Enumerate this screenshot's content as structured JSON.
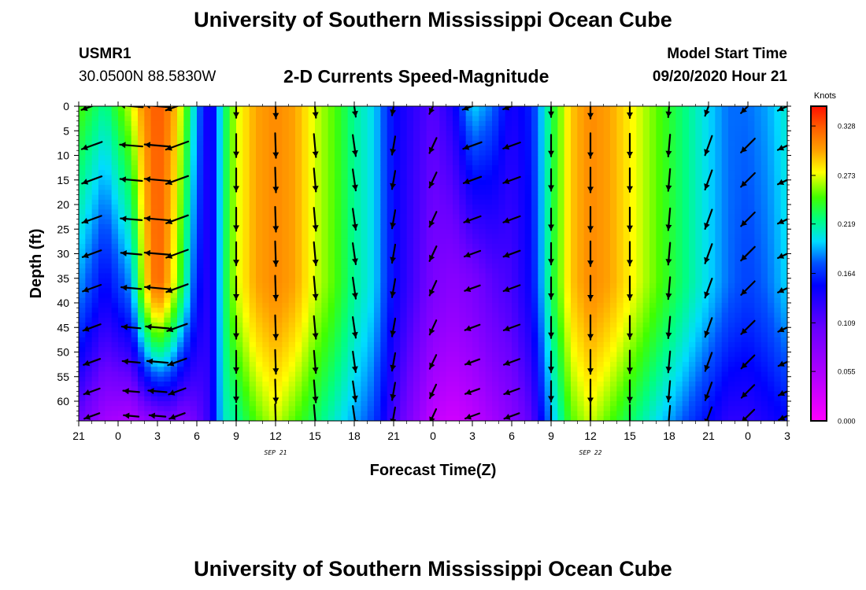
{
  "header": {
    "title": "University of Southern Mississippi Ocean Cube",
    "station_id": "USMR1",
    "station_coords": "30.0500N 88.5830W",
    "chart_title": "2-D Currents Speed-Magnitude",
    "model_start_label": "Model Start Time",
    "model_start_value": "09/20/2020 Hour 21"
  },
  "footer": {
    "title": "University of Southern Mississippi Ocean Cube"
  },
  "chart_data": {
    "type": "heatmap",
    "title": "2-D Currents Speed-Magnitude",
    "xlabel": "Forecast Time(Z)",
    "ylabel": "Depth (ft)",
    "x_start_hour": -3,
    "x_end_hour": 51,
    "x_ticks": [
      {
        "hour": -3,
        "label": "21"
      },
      {
        "hour": 0,
        "label": "0"
      },
      {
        "hour": 3,
        "label": "3"
      },
      {
        "hour": 6,
        "label": "6"
      },
      {
        "hour": 9,
        "label": "9"
      },
      {
        "hour": 12,
        "label": "12"
      },
      {
        "hour": 15,
        "label": "15"
      },
      {
        "hour": 18,
        "label": "18"
      },
      {
        "hour": 21,
        "label": "21"
      },
      {
        "hour": 24,
        "label": "0"
      },
      {
        "hour": 27,
        "label": "3"
      },
      {
        "hour": 30,
        "label": "6"
      },
      {
        "hour": 33,
        "label": "9"
      },
      {
        "hour": 36,
        "label": "12"
      },
      {
        "hour": 39,
        "label": "15"
      },
      {
        "hour": 42,
        "label": "18"
      },
      {
        "hour": 45,
        "label": "21"
      },
      {
        "hour": 48,
        "label": "0"
      },
      {
        "hour": 51,
        "label": "3"
      }
    ],
    "date_labels": [
      {
        "hour": 12,
        "label": "SEP 21"
      },
      {
        "hour": 36,
        "label": "SEP 22"
      }
    ],
    "ylim": [
      0,
      64
    ],
    "y_ticks": [
      0,
      5,
      10,
      15,
      20,
      25,
      30,
      35,
      40,
      45,
      50,
      55,
      60
    ],
    "colorbar": {
      "label": "Knots",
      "min": 0.0,
      "max": 0.35,
      "ticks": [
        "0.328",
        "0.273",
        "0.219",
        "0.164",
        "0.109",
        "0.055",
        "0.000"
      ],
      "tick_values": [
        0.328,
        0.273,
        0.219,
        0.164,
        0.109,
        0.055,
        0.0
      ]
    },
    "speed_profiles": [
      {
        "hour": -3.0,
        "surface": 0.25,
        "bottom": 0.1,
        "mid": 0.19
      },
      {
        "hour": -1.0,
        "surface": 0.22,
        "bottom": 0.06,
        "mid": 0.15
      },
      {
        "hour": 1.0,
        "surface": 0.27,
        "bottom": 0.05,
        "mid": 0.19
      },
      {
        "hour": 2.0,
        "surface": 0.31,
        "bottom": 0.07,
        "mid": 0.28
      },
      {
        "hour": 3.0,
        "surface": 0.33,
        "bottom": 0.08,
        "mid": 0.33
      },
      {
        "hour": 4.0,
        "surface": 0.31,
        "bottom": 0.09,
        "mid": 0.29
      },
      {
        "hour": 5.0,
        "surface": 0.26,
        "bottom": 0.08,
        "mid": 0.23
      },
      {
        "hour": 6.0,
        "surface": 0.19,
        "bottom": 0.1,
        "mid": 0.16
      },
      {
        "hour": 7.0,
        "surface": 0.13,
        "bottom": 0.13,
        "mid": 0.13
      },
      {
        "hour": 8.0,
        "surface": 0.22,
        "bottom": 0.21,
        "mid": 0.22
      },
      {
        "hour": 9.0,
        "surface": 0.27,
        "bottom": 0.22,
        "mid": 0.27
      },
      {
        "hour": 10.5,
        "surface": 0.3,
        "bottom": 0.25,
        "mid": 0.3
      },
      {
        "hour": 12.0,
        "surface": 0.31,
        "bottom": 0.27,
        "mid": 0.31
      },
      {
        "hour": 13.5,
        "surface": 0.3,
        "bottom": 0.25,
        "mid": 0.3
      },
      {
        "hour": 15.0,
        "surface": 0.27,
        "bottom": 0.23,
        "mid": 0.27
      },
      {
        "hour": 16.5,
        "surface": 0.25,
        "bottom": 0.21,
        "mid": 0.25
      },
      {
        "hour": 18.0,
        "surface": 0.22,
        "bottom": 0.19,
        "mid": 0.22
      },
      {
        "hour": 19.5,
        "surface": 0.2,
        "bottom": 0.17,
        "mid": 0.2
      },
      {
        "hour": 21.0,
        "surface": 0.15,
        "bottom": 0.12,
        "mid": 0.15
      },
      {
        "hour": 22.5,
        "surface": 0.13,
        "bottom": 0.08,
        "mid": 0.12
      },
      {
        "hour": 24.0,
        "surface": 0.11,
        "bottom": 0.04,
        "mid": 0.09
      },
      {
        "hour": 25.5,
        "surface": 0.14,
        "bottom": 0.03,
        "mid": 0.08
      },
      {
        "hour": 27.0,
        "surface": 0.2,
        "bottom": 0.04,
        "mid": 0.09
      },
      {
        "hour": 28.5,
        "surface": 0.18,
        "bottom": 0.06,
        "mid": 0.11
      },
      {
        "hour": 30.0,
        "surface": 0.14,
        "bottom": 0.08,
        "mid": 0.12
      },
      {
        "hour": 31.5,
        "surface": 0.16,
        "bottom": 0.11,
        "mid": 0.15
      },
      {
        "hour": 33.0,
        "surface": 0.23,
        "bottom": 0.19,
        "mid": 0.23
      },
      {
        "hour": 34.5,
        "surface": 0.29,
        "bottom": 0.25,
        "mid": 0.29
      },
      {
        "hour": 36.0,
        "surface": 0.31,
        "bottom": 0.27,
        "mid": 0.31
      },
      {
        "hour": 37.5,
        "surface": 0.3,
        "bottom": 0.25,
        "mid": 0.3
      },
      {
        "hour": 39.0,
        "surface": 0.28,
        "bottom": 0.23,
        "mid": 0.28
      },
      {
        "hour": 40.5,
        "surface": 0.26,
        "bottom": 0.21,
        "mid": 0.26
      },
      {
        "hour": 42.0,
        "surface": 0.24,
        "bottom": 0.19,
        "mid": 0.24
      },
      {
        "hour": 43.5,
        "surface": 0.22,
        "bottom": 0.17,
        "mid": 0.22
      },
      {
        "hour": 45.0,
        "surface": 0.2,
        "bottom": 0.15,
        "mid": 0.2
      },
      {
        "hour": 46.5,
        "surface": 0.18,
        "bottom": 0.13,
        "mid": 0.18
      },
      {
        "hour": 48.0,
        "surface": 0.18,
        "bottom": 0.13,
        "mid": 0.17
      },
      {
        "hour": 49.5,
        "surface": 0.19,
        "bottom": 0.14,
        "mid": 0.18
      },
      {
        "hour": 51.0,
        "surface": 0.21,
        "bottom": 0.15,
        "mid": 0.2
      }
    ],
    "vector_columns": [
      {
        "hour": -2.0,
        "dir_deg": 250,
        "speed": 0.2
      },
      {
        "hour": 1.0,
        "dir_deg": 275,
        "speed": 0.26
      },
      {
        "hour": 3.0,
        "dir_deg": 275,
        "speed": 0.3
      },
      {
        "hour": 4.5,
        "dir_deg": 250,
        "speed": 0.22
      },
      {
        "hour": 9.0,
        "dir_deg": 180,
        "speed": 0.26
      },
      {
        "hour": 12.0,
        "dir_deg": 178,
        "speed": 0.3
      },
      {
        "hour": 15.0,
        "dir_deg": 175,
        "speed": 0.28
      },
      {
        "hour": 18.0,
        "dir_deg": 172,
        "speed": 0.23
      },
      {
        "hour": 21.0,
        "dir_deg": 190,
        "speed": 0.16
      },
      {
        "hour": 24.0,
        "dir_deg": 205,
        "speed": 0.1
      },
      {
        "hour": 27.0,
        "dir_deg": 250,
        "speed": 0.16
      },
      {
        "hour": 30.0,
        "dir_deg": 250,
        "speed": 0.14
      },
      {
        "hour": 33.0,
        "dir_deg": 180,
        "speed": 0.22
      },
      {
        "hour": 36.0,
        "dir_deg": 180,
        "speed": 0.3
      },
      {
        "hour": 39.0,
        "dir_deg": 180,
        "speed": 0.28
      },
      {
        "hour": 42.0,
        "dir_deg": 185,
        "speed": 0.24
      },
      {
        "hour": 45.0,
        "dir_deg": 200,
        "speed": 0.2
      },
      {
        "hour": 48.0,
        "dir_deg": 225,
        "speed": 0.18
      },
      {
        "hour": 51.0,
        "dir_deg": 245,
        "speed": 0.2
      }
    ],
    "vector_depths": [
      0,
      8,
      15,
      23,
      30,
      37,
      45,
      52,
      58,
      63
    ]
  }
}
